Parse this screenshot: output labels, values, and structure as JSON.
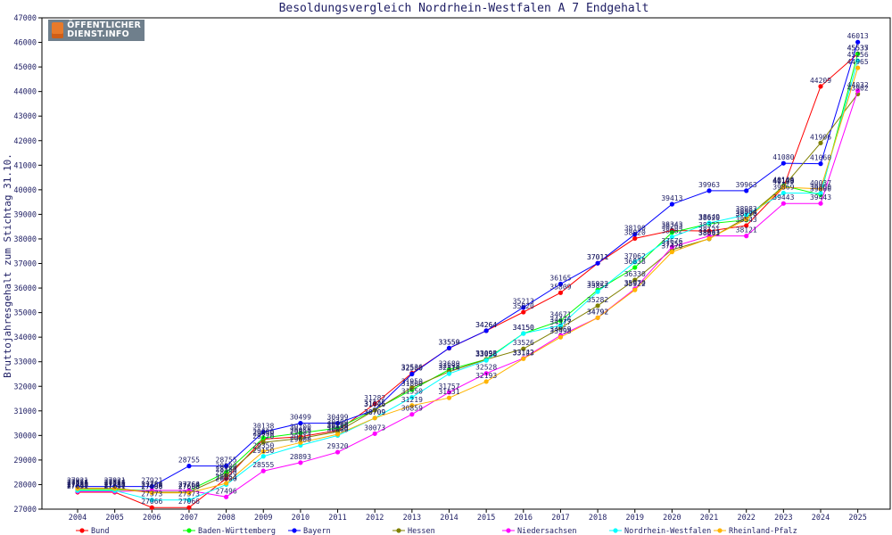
{
  "logo": {
    "line1": "ÖFFENTLICHER",
    "line2": "DIENST.INFO"
  },
  "chart_data": {
    "type": "line",
    "title": "Besoldungsvergleich Nordrhein-Westfalen A 7 Endgehalt",
    "ylabel": "Bruttojahresgehalt zum Stichtag 31.10.",
    "xlabel": "",
    "ylim": [
      27000,
      47000
    ],
    "yticks": [
      27000,
      28000,
      29000,
      30000,
      31000,
      32000,
      33000,
      34000,
      35000,
      36000,
      37000,
      38000,
      39000,
      40000,
      41000,
      42000,
      43000,
      44000,
      45000,
      46000,
      47000
    ],
    "grid": false,
    "legend_position": "bottom",
    "categories": [
      "2004",
      "2005",
      "2006",
      "2007",
      "2008",
      "2009",
      "2010",
      "2011",
      "2012",
      "2013",
      "2014",
      "2015",
      "2016",
      "2017",
      "2018",
      "2019",
      "2020",
      "2021",
      "2022",
      "2023",
      "2024",
      "2025"
    ],
    "series": [
      {
        "name": "Bund",
        "color": "#ff0000",
        "values": [
          27691,
          27691,
          27066,
          27066,
          28250,
          29850,
          29950,
          30200,
          31282,
          32536,
          33550,
          34264,
          35020,
          35809,
          37011,
          38020,
          38343,
          38322,
          38543,
          40105,
          44209,
          45535
        ]
      },
      {
        "name": "Baden-Württemberg",
        "color": "#00ff00",
        "values": [
          27785,
          27785,
          27759,
          27760,
          28500,
          29900,
          30100,
          30300,
          31045,
          31860,
          32680,
          33098,
          34150,
          34671,
          35922,
          36838,
          38263,
          38620,
          38770,
          40164,
          39800,
          45537
        ]
      },
      {
        "name": "Bayern",
        "color": "#0000ff",
        "values": [
          27921,
          27921,
          27921,
          28755,
          28755,
          30138,
          30499,
          30499,
          31045,
          32500,
          33559,
          34264,
          35213,
          36165,
          37011,
          38190,
          39413,
          39963,
          39963,
          41080,
          41060,
          46013
        ]
      },
      {
        "name": "Hessen",
        "color": "#808000",
        "values": [
          27854,
          27854,
          27690,
          27690,
          28380,
          29720,
          29883,
          30156,
          31026,
          31950,
          32598,
          33093,
          33526,
          34377,
          35282,
          36330,
          37558,
          38001,
          38864,
          40140,
          41906,
          43902
        ]
      },
      {
        "name": "Niedersachsen",
        "color": "#ff00ff",
        "values": [
          27719,
          27719,
          27764,
          27764,
          27496,
          28555,
          28893,
          29320,
          30073,
          30859,
          31757,
          32528,
          33142,
          34069,
          34792,
          35970,
          37676,
          38121,
          38121,
          39443,
          39443,
          44032
        ]
      },
      {
        "name": "Nordrhein-Westfalen",
        "color": "#00ffff",
        "values": [
          27755,
          27755,
          27373,
          27373,
          28000,
          29150,
          29600,
          30000,
          30709,
          31550,
          32514,
          33056,
          34150,
          34476,
          35852,
          37062,
          38082,
          38649,
          38983,
          39869,
          39860,
          45256
        ]
      },
      {
        "name": "Rheinland-Pfalz",
        "color": "#ffb400",
        "values": [
          27835,
          27835,
          27666,
          27666,
          28054,
          29350,
          29712,
          30050,
          30709,
          31219,
          31531,
          32193,
          33123,
          33998,
          34792,
          35922,
          37470,
          38013,
          38796,
          40100,
          40037,
          44965
        ]
      }
    ]
  }
}
